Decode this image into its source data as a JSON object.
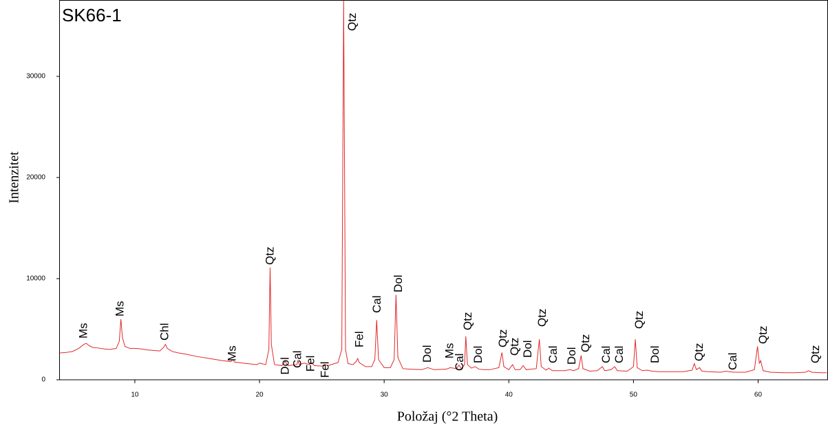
{
  "chart_data": {
    "type": "line",
    "title": "SK66-1",
    "x_label": "Položaj (°2 Theta)",
    "y_label": "Intenzitet",
    "color": "#e0282a",
    "xlim": [
      3.93,
      65.55
    ],
    "ylim": [
      0,
      37550
    ],
    "xticks": [
      10,
      20,
      30,
      40,
      50,
      60
    ],
    "yticks": [
      0,
      10000,
      20000,
      30000
    ],
    "x": [
      4,
      4.5,
      5,
      5.5,
      5.9,
      6.1,
      6.3,
      6.6,
      7,
      7.5,
      8,
      8.5,
      8.75,
      8.88,
      9.0,
      9.2,
      9.6,
      10,
      10.5,
      11,
      11.5,
      12,
      12.3,
      12.45,
      12.6,
      13,
      13.5,
      14,
      15,
      16,
      17,
      17.7,
      17.85,
      18,
      19,
      19.8,
      20,
      20.5,
      20.75,
      20.85,
      20.95,
      21.2,
      21.8,
      22.05,
      22.3,
      23.0,
      23.08,
      23.2,
      23.6,
      24.0,
      24.15,
      24.4,
      25.0,
      25.2,
      25.5,
      26.0,
      26.3,
      26.6,
      26.75,
      26.9,
      27.1,
      27.5,
      27.75,
      27.88,
      28.0,
      28.5,
      29.0,
      29.25,
      29.4,
      29.55,
      30.0,
      30.5,
      30.8,
      30.95,
      31.1,
      31.5,
      32,
      33,
      33.5,
      34,
      35,
      35.3,
      35.8,
      36.0,
      36.2,
      36.45,
      36.55,
      36.68,
      37,
      37.3,
      37.6,
      38,
      38.5,
      39.2,
      39.45,
      39.6,
      40.0,
      40.3,
      40.5,
      40.9,
      41.15,
      41.4,
      42.2,
      42.45,
      42.6,
      43.0,
      43.2,
      43.5,
      44.5,
      44.9,
      45.2,
      45.6,
      45.8,
      45.95,
      46.5,
      47.1,
      47.5,
      47.7,
      48.2,
      48.5,
      48.7,
      49.5,
      50.0,
      50.15,
      50.3,
      50.7,
      51.1,
      51.5,
      52,
      53,
      54,
      54.7,
      54.88,
      55.05,
      55.3,
      55.5,
      56,
      57,
      57.4,
      58,
      59,
      59.7,
      59.95,
      60.1,
      60.2,
      60.4,
      61,
      62,
      63,
      63.8,
      64.05,
      64.3,
      65,
      65.5
    ],
    "values": [
      2650,
      2700,
      2800,
      3100,
      3500,
      3600,
      3400,
      3200,
      3150,
      3050,
      3000,
      3100,
      3800,
      6000,
      4200,
      3300,
      3100,
      3100,
      3050,
      2950,
      2900,
      2850,
      3200,
      3500,
      3100,
      2800,
      2650,
      2550,
      2300,
      2100,
      1900,
      1800,
      2000,
      1750,
      1600,
      1500,
      1650,
      1500,
      3000,
      11100,
      3500,
      1500,
      1400,
      1800,
      1400,
      1500,
      1900,
      1500,
      1650,
      1500,
      1700,
      1400,
      1350,
      1500,
      1400,
      1600,
      1700,
      3000,
      37500,
      3000,
      1600,
      1500,
      1800,
      2100,
      1700,
      1300,
      1300,
      2000,
      5900,
      2000,
      1200,
      1200,
      2000,
      8400,
      2200,
      1100,
      1050,
      1000,
      1200,
      1000,
      1050,
      1200,
      1100,
      1450,
      1100,
      1500,
      4300,
      1500,
      1150,
      1300,
      1050,
      1000,
      1000,
      1200,
      2700,
      1300,
      1000,
      1500,
      1000,
      1000,
      1400,
      1000,
      1100,
      4000,
      1300,
      950,
      1150,
      900,
      900,
      1000,
      900,
      1100,
      2400,
      1100,
      850,
      900,
      1300,
      900,
      1000,
      1300,
      900,
      850,
      1300,
      4000,
      1200,
      900,
      950,
      850,
      800,
      800,
      800,
      950,
      1600,
      1000,
      1200,
      850,
      800,
      750,
      850,
      750,
      750,
      1000,
      3300,
      1600,
      1900,
      900,
      750,
      700,
      700,
      750,
      900,
      750,
      700,
      700
    ],
    "annotations": [
      {
        "text": "Ms",
        "x": 5.92,
        "y": 4080
      },
      {
        "text": "Ms",
        "x": 8.84,
        "y": 6260
      },
      {
        "text": "Chl",
        "x": 12.43,
        "y": 3880
      },
      {
        "text": "Ms",
        "x": 17.84,
        "y": 1840
      },
      {
        "text": "Qtz",
        "x": 20.87,
        "y": 11360
      },
      {
        "text": "Dol",
        "x": 22.09,
        "y": 500
      },
      {
        "text": "Cal",
        "x": 23.08,
        "y": 1160
      },
      {
        "text": "Fel",
        "x": 24.13,
        "y": 800
      },
      {
        "text": "Fel",
        "x": 25.29,
        "y": 200
      },
      {
        "text": "Qtz",
        "x": 27.49,
        "y": 34490
      },
      {
        "text": "Fel",
        "x": 28.05,
        "y": 3200
      },
      {
        "text": "Cal",
        "x": 29.48,
        "y": 6600
      },
      {
        "text": "Dol",
        "x": 31.19,
        "y": 8640
      },
      {
        "text": "Dol",
        "x": 33.51,
        "y": 1700
      },
      {
        "text": "Ms",
        "x": 35.28,
        "y": 2100
      },
      {
        "text": "Cal",
        "x": 36.1,
        "y": 880
      },
      {
        "text": "Qtz",
        "x": 36.77,
        "y": 4900
      },
      {
        "text": "Dol",
        "x": 37.59,
        "y": 1630
      },
      {
        "text": "Qtz",
        "x": 39.58,
        "y": 3200
      },
      {
        "text": "Qtz",
        "x": 40.52,
        "y": 2380
      },
      {
        "text": "Dol",
        "x": 41.57,
        "y": 2180
      },
      {
        "text": "Qtz",
        "x": 42.73,
        "y": 5240
      },
      {
        "text": "Cal",
        "x": 43.61,
        "y": 1630
      },
      {
        "text": "Dol",
        "x": 45.1,
        "y": 1500
      },
      {
        "text": "Qtz",
        "x": 46.2,
        "y": 2720
      },
      {
        "text": "Cal",
        "x": 47.86,
        "y": 1630
      },
      {
        "text": "Cal",
        "x": 48.91,
        "y": 1630
      },
      {
        "text": "Qtz",
        "x": 50.51,
        "y": 5030
      },
      {
        "text": "Dol",
        "x": 51.78,
        "y": 1630
      },
      {
        "text": "Qtz",
        "x": 55.31,
        "y": 1840
      },
      {
        "text": "Cal",
        "x": 58.01,
        "y": 950
      },
      {
        "text": "Qtz",
        "x": 60.44,
        "y": 3540
      },
      {
        "text": "Qtz",
        "x": 64.64,
        "y": 1630
      }
    ]
  }
}
